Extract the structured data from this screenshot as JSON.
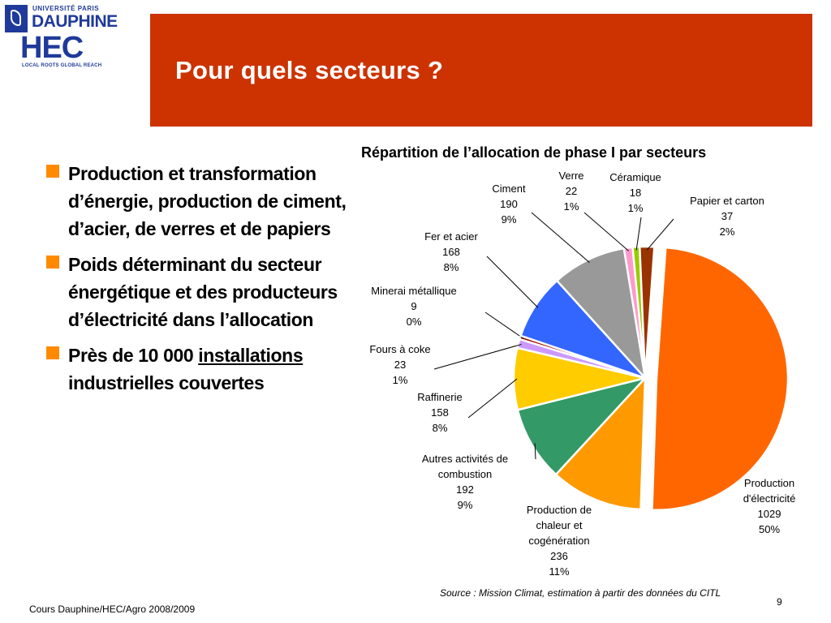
{
  "logos": {
    "dauphine_univ": "UNIVERSITÉ PARIS",
    "dauphine_name": "DAUPHINE",
    "hec_name": "HEC",
    "hec_tagline": "LOCAL ROOTS GLOBAL REACH"
  },
  "header": {
    "title": "Pour quels secteurs ?",
    "color": "#cc3300"
  },
  "bullets": {
    "items": [
      {
        "text": "Production et transformation d’énergie, production de ciment, d’acier, de verres et de papiers"
      },
      {
        "text": "Poids déterminant du secteur énergétique et des producteurs d’électricité dans l’allocation"
      },
      {
        "text_before": "Près de 10 000 ",
        "text_underlined": "installations",
        "text_after": " industrielles couvertes"
      }
    ],
    "bullet_color": "#ff8a00"
  },
  "chart_data": {
    "type": "pie",
    "title": "Répartition de l’allocation de phase I par secteurs",
    "slices": [
      {
        "lines": [
          "Production",
          "d'électricité"
        ],
        "value": 1029,
        "percent": "50%",
        "color": "#ff6600"
      },
      {
        "lines": [
          "Production de",
          "chaleur et",
          "cogénération"
        ],
        "value": 236,
        "percent": "11%",
        "color": "#ff9900"
      },
      {
        "lines": [
          "Autres activités de",
          "combustion"
        ],
        "value": 192,
        "percent": "9%",
        "color": "#339966"
      },
      {
        "lines": [
          "Raffinerie"
        ],
        "value": 158,
        "percent": "8%",
        "color": "#ffcc00"
      },
      {
        "lines": [
          "Fours à coke"
        ],
        "value": 23,
        "percent": "1%",
        "color": "#cc99ff"
      },
      {
        "lines": [
          "Minerai métallique"
        ],
        "value": 9,
        "percent": "0%",
        "color": "#990000"
      },
      {
        "lines": [
          "Fer et acier"
        ],
        "value": 168,
        "percent": "8%",
        "color": "#3366ff"
      },
      {
        "lines": [
          "Ciment"
        ],
        "value": 190,
        "percent": "9%",
        "color": "#999999"
      },
      {
        "lines": [
          "Verre"
        ],
        "value": 22,
        "percent": "1%",
        "color": "#ff99cc"
      },
      {
        "lines": [
          "Céramique"
        ],
        "value": 18,
        "percent": "1%",
        "color": "#99cc00"
      },
      {
        "lines": [
          "Papier et carton"
        ],
        "value": 37,
        "percent": "2%",
        "color": "#993300"
      }
    ]
  },
  "source": "Source : Mission Climat, estimation à partir des données du CITL",
  "footer": {
    "course": "Cours Dauphine/HEC/Agro 2008/2009",
    "page_number": "9"
  }
}
